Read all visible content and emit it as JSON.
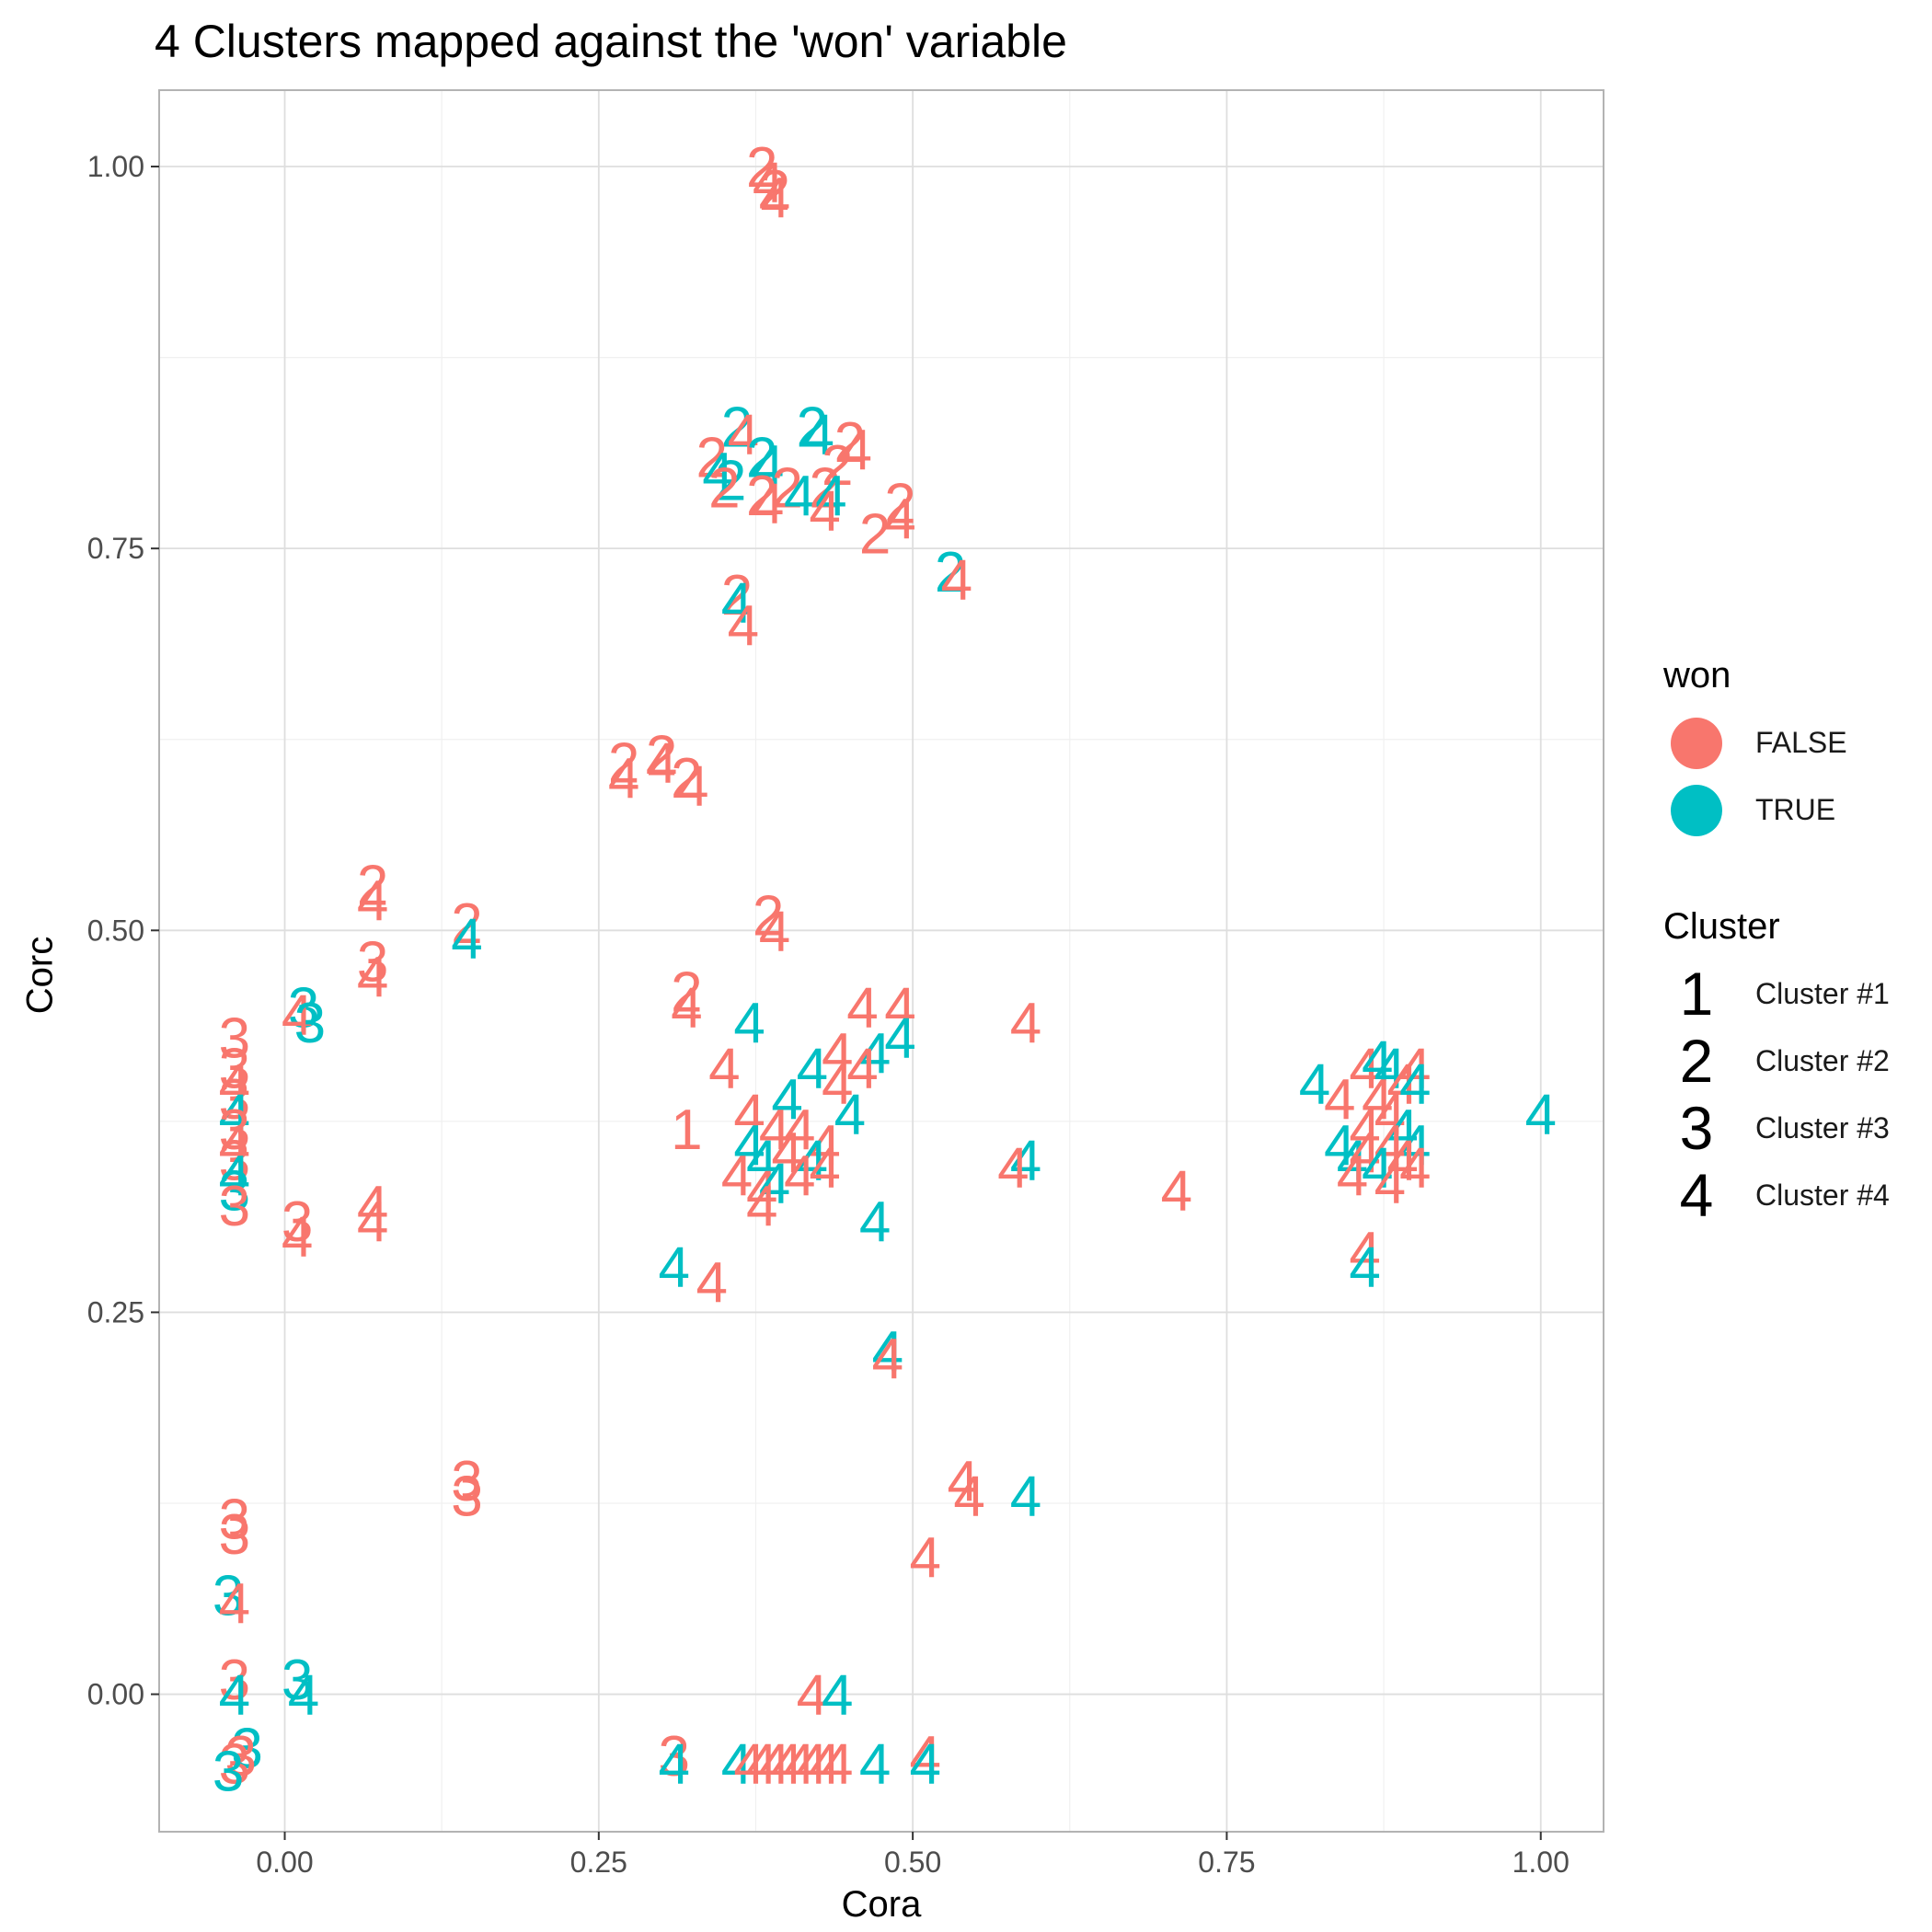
{
  "chart_data": {
    "type": "scatter",
    "title": "4 Clusters mapped against the 'won' variable",
    "xlabel": "Cora",
    "ylabel": "Corc",
    "xlim": [
      -0.1,
      1.05
    ],
    "ylim": [
      -0.09,
      1.05
    ],
    "x_ticks": [
      0.0,
      0.25,
      0.5,
      0.75,
      1.0
    ],
    "x_tick_labels": [
      "0.00",
      "0.25",
      "0.50",
      "0.75",
      "1.00"
    ],
    "y_ticks": [
      0.0,
      0.25,
      0.5,
      0.75,
      1.0
    ],
    "y_tick_labels": [
      "0.00",
      "0.25",
      "0.50",
      "0.75",
      "1.00"
    ],
    "grid": true,
    "legend_position": "right",
    "colors": {
      "FALSE": "#F8766D",
      "TRUE": "#00BFC4"
    },
    "legends": {
      "won": {
        "title": "won",
        "entries": [
          {
            "label": "FALSE",
            "key": "FALSE"
          },
          {
            "label": "TRUE",
            "key": "TRUE"
          }
        ]
      },
      "cluster": {
        "title": "Cluster",
        "entries": [
          {
            "glyph": "1",
            "label": "Cluster #1"
          },
          {
            "glyph": "2",
            "label": "Cluster #2"
          },
          {
            "glyph": "3",
            "label": "Cluster #3"
          },
          {
            "glyph": "4",
            "label": "Cluster #4"
          }
        ]
      }
    },
    "points": [
      {
        "x": 0.38,
        "y": 1.0,
        "label": "2",
        "won": "FALSE"
      },
      {
        "x": 0.385,
        "y": 0.99,
        "label": "4",
        "won": "FALSE"
      },
      {
        "x": 0.39,
        "y": 0.985,
        "label": "2",
        "won": "FALSE"
      },
      {
        "x": 0.39,
        "y": 0.98,
        "label": "4",
        "won": "FALSE"
      },
      {
        "x": 0.36,
        "y": 0.83,
        "label": "2",
        "won": "TRUE"
      },
      {
        "x": 0.365,
        "y": 0.825,
        "label": "4",
        "won": "FALSE"
      },
      {
        "x": 0.42,
        "y": 0.83,
        "label": "2",
        "won": "TRUE"
      },
      {
        "x": 0.425,
        "y": 0.825,
        "label": "4",
        "won": "TRUE"
      },
      {
        "x": 0.34,
        "y": 0.81,
        "label": "2",
        "won": "FALSE"
      },
      {
        "x": 0.345,
        "y": 0.8,
        "label": "4",
        "won": "TRUE"
      },
      {
        "x": 0.38,
        "y": 0.81,
        "label": "2",
        "won": "TRUE"
      },
      {
        "x": 0.385,
        "y": 0.805,
        "label": "4",
        "won": "TRUE"
      },
      {
        "x": 0.355,
        "y": 0.795,
        "label": "2",
        "won": "TRUE"
      },
      {
        "x": 0.35,
        "y": 0.79,
        "label": "2",
        "won": "FALSE"
      },
      {
        "x": 0.45,
        "y": 0.82,
        "label": "2",
        "won": "FALSE"
      },
      {
        "x": 0.455,
        "y": 0.815,
        "label": "4",
        "won": "FALSE"
      },
      {
        "x": 0.44,
        "y": 0.805,
        "label": "2",
        "won": "FALSE"
      },
      {
        "x": 0.38,
        "y": 0.785,
        "label": "2",
        "won": "FALSE"
      },
      {
        "x": 0.385,
        "y": 0.78,
        "label": "4",
        "won": "FALSE"
      },
      {
        "x": 0.4,
        "y": 0.79,
        "label": "2",
        "won": "FALSE"
      },
      {
        "x": 0.41,
        "y": 0.785,
        "label": "4",
        "won": "TRUE"
      },
      {
        "x": 0.43,
        "y": 0.79,
        "label": "2",
        "won": "FALSE"
      },
      {
        "x": 0.435,
        "y": 0.785,
        "label": "4",
        "won": "TRUE"
      },
      {
        "x": 0.43,
        "y": 0.775,
        "label": "4",
        "won": "FALSE"
      },
      {
        "x": 0.49,
        "y": 0.78,
        "label": "2",
        "won": "FALSE"
      },
      {
        "x": 0.49,
        "y": 0.77,
        "label": "4",
        "won": "FALSE"
      },
      {
        "x": 0.47,
        "y": 0.76,
        "label": "2",
        "won": "FALSE"
      },
      {
        "x": 0.53,
        "y": 0.735,
        "label": "2",
        "won": "TRUE"
      },
      {
        "x": 0.535,
        "y": 0.73,
        "label": "4",
        "won": "FALSE"
      },
      {
        "x": 0.36,
        "y": 0.72,
        "label": "2",
        "won": "FALSE"
      },
      {
        "x": 0.36,
        "y": 0.715,
        "label": "4",
        "won": "TRUE"
      },
      {
        "x": 0.365,
        "y": 0.7,
        "label": "4",
        "won": "FALSE"
      },
      {
        "x": 0.27,
        "y": 0.61,
        "label": "2",
        "won": "FALSE"
      },
      {
        "x": 0.27,
        "y": 0.6,
        "label": "4",
        "won": "FALSE"
      },
      {
        "x": 0.3,
        "y": 0.615,
        "label": "2",
        "won": "FALSE"
      },
      {
        "x": 0.3,
        "y": 0.61,
        "label": "4",
        "won": "FALSE"
      },
      {
        "x": 0.32,
        "y": 0.6,
        "label": "2",
        "won": "FALSE"
      },
      {
        "x": 0.325,
        "y": 0.595,
        "label": "4",
        "won": "FALSE"
      },
      {
        "x": 0.07,
        "y": 0.53,
        "label": "2",
        "won": "FALSE"
      },
      {
        "x": 0.07,
        "y": 0.52,
        "label": "4",
        "won": "FALSE"
      },
      {
        "x": 0.145,
        "y": 0.505,
        "label": "2",
        "won": "FALSE"
      },
      {
        "x": 0.145,
        "y": 0.495,
        "label": "4",
        "won": "TRUE"
      },
      {
        "x": 0.385,
        "y": 0.51,
        "label": "2",
        "won": "FALSE"
      },
      {
        "x": 0.39,
        "y": 0.5,
        "label": "4",
        "won": "FALSE"
      },
      {
        "x": 0.07,
        "y": 0.48,
        "label": "3",
        "won": "FALSE"
      },
      {
        "x": 0.07,
        "y": 0.47,
        "label": "4",
        "won": "FALSE"
      },
      {
        "x": 0.32,
        "y": 0.46,
        "label": "2",
        "won": "FALSE"
      },
      {
        "x": 0.32,
        "y": 0.45,
        "label": "4",
        "won": "FALSE"
      },
      {
        "x": 0.015,
        "y": 0.45,
        "label": "3",
        "won": "TRUE"
      },
      {
        "x": 0.01,
        "y": 0.445,
        "label": "4",
        "won": "FALSE"
      },
      {
        "x": 0.02,
        "y": 0.44,
        "label": "3",
        "won": "TRUE"
      },
      {
        "x": -0.04,
        "y": 0.43,
        "label": "3",
        "won": "FALSE"
      },
      {
        "x": -0.04,
        "y": 0.41,
        "label": "3",
        "won": "FALSE"
      },
      {
        "x": -0.04,
        "y": 0.4,
        "label": "4",
        "won": "FALSE"
      },
      {
        "x": -0.04,
        "y": 0.39,
        "label": "3",
        "won": "FALSE"
      },
      {
        "x": -0.04,
        "y": 0.38,
        "label": "4",
        "won": "TRUE"
      },
      {
        "x": -0.04,
        "y": 0.37,
        "label": "3",
        "won": "FALSE"
      },
      {
        "x": -0.04,
        "y": 0.36,
        "label": "4",
        "won": "FALSE"
      },
      {
        "x": -0.04,
        "y": 0.35,
        "label": "3",
        "won": "FALSE"
      },
      {
        "x": -0.04,
        "y": 0.34,
        "label": "4",
        "won": "TRUE"
      },
      {
        "x": -0.04,
        "y": 0.33,
        "label": "3",
        "won": "TRUE"
      },
      {
        "x": -0.04,
        "y": 0.32,
        "label": "3",
        "won": "FALSE"
      },
      {
        "x": 0.01,
        "y": 0.31,
        "label": "3",
        "won": "FALSE"
      },
      {
        "x": 0.01,
        "y": 0.3,
        "label": "4",
        "won": "FALSE"
      },
      {
        "x": 0.07,
        "y": 0.32,
        "label": "4",
        "won": "FALSE"
      },
      {
        "x": 0.07,
        "y": 0.31,
        "label": "4",
        "won": "FALSE"
      },
      {
        "x": 0.37,
        "y": 0.44,
        "label": "4",
        "won": "TRUE"
      },
      {
        "x": 0.35,
        "y": 0.41,
        "label": "4",
        "won": "FALSE"
      },
      {
        "x": 0.32,
        "y": 0.37,
        "label": "1",
        "won": "FALSE"
      },
      {
        "x": 0.46,
        "y": 0.45,
        "label": "4",
        "won": "FALSE"
      },
      {
        "x": 0.49,
        "y": 0.45,
        "label": "4",
        "won": "FALSE"
      },
      {
        "x": 0.49,
        "y": 0.43,
        "label": "4",
        "won": "TRUE"
      },
      {
        "x": 0.47,
        "y": 0.42,
        "label": "4",
        "won": "TRUE"
      },
      {
        "x": 0.44,
        "y": 0.42,
        "label": "4",
        "won": "FALSE"
      },
      {
        "x": 0.42,
        "y": 0.41,
        "label": "4",
        "won": "TRUE"
      },
      {
        "x": 0.44,
        "y": 0.4,
        "label": "4",
        "won": "FALSE"
      },
      {
        "x": 0.46,
        "y": 0.41,
        "label": "4",
        "won": "FALSE"
      },
      {
        "x": 0.4,
        "y": 0.39,
        "label": "4",
        "won": "TRUE"
      },
      {
        "x": 0.45,
        "y": 0.38,
        "label": "4",
        "won": "TRUE"
      },
      {
        "x": 0.37,
        "y": 0.38,
        "label": "4",
        "won": "FALSE"
      },
      {
        "x": 0.39,
        "y": 0.37,
        "label": "4",
        "won": "FALSE"
      },
      {
        "x": 0.41,
        "y": 0.37,
        "label": "4",
        "won": "FALSE"
      },
      {
        "x": 0.43,
        "y": 0.36,
        "label": "4",
        "won": "FALSE"
      },
      {
        "x": 0.37,
        "y": 0.36,
        "label": "4",
        "won": "TRUE"
      },
      {
        "x": 0.38,
        "y": 0.35,
        "label": "4",
        "won": "TRUE"
      },
      {
        "x": 0.4,
        "y": 0.355,
        "label": "4",
        "won": "FALSE"
      },
      {
        "x": 0.42,
        "y": 0.35,
        "label": "4",
        "won": "TRUE"
      },
      {
        "x": 0.43,
        "y": 0.345,
        "label": "4",
        "won": "FALSE"
      },
      {
        "x": 0.36,
        "y": 0.34,
        "label": "4",
        "won": "FALSE"
      },
      {
        "x": 0.38,
        "y": 0.33,
        "label": "4",
        "won": "FALSE"
      },
      {
        "x": 0.39,
        "y": 0.335,
        "label": "4",
        "won": "TRUE"
      },
      {
        "x": 0.41,
        "y": 0.34,
        "label": "4",
        "won": "FALSE"
      },
      {
        "x": 0.38,
        "y": 0.32,
        "label": "4",
        "won": "FALSE"
      },
      {
        "x": 0.59,
        "y": 0.44,
        "label": "4",
        "won": "FALSE"
      },
      {
        "x": 0.59,
        "y": 0.35,
        "label": "4",
        "won": "TRUE"
      },
      {
        "x": 0.58,
        "y": 0.345,
        "label": "4",
        "won": "FALSE"
      },
      {
        "x": 0.71,
        "y": 0.33,
        "label": "4",
        "won": "FALSE"
      },
      {
        "x": 0.47,
        "y": 0.31,
        "label": "4",
        "won": "TRUE"
      },
      {
        "x": 0.31,
        "y": 0.28,
        "label": "4",
        "won": "TRUE"
      },
      {
        "x": 0.34,
        "y": 0.27,
        "label": "4",
        "won": "FALSE"
      },
      {
        "x": 0.48,
        "y": 0.225,
        "label": "4",
        "won": "TRUE"
      },
      {
        "x": 0.48,
        "y": 0.22,
        "label": "4",
        "won": "FALSE"
      },
      {
        "x": 0.82,
        "y": 0.4,
        "label": "4",
        "won": "TRUE"
      },
      {
        "x": 0.84,
        "y": 0.39,
        "label": "4",
        "won": "FALSE"
      },
      {
        "x": 0.86,
        "y": 0.41,
        "label": "4",
        "won": "FALSE"
      },
      {
        "x": 0.87,
        "y": 0.415,
        "label": "4",
        "won": "TRUE"
      },
      {
        "x": 0.88,
        "y": 0.41,
        "label": "4",
        "won": "TRUE"
      },
      {
        "x": 0.89,
        "y": 0.4,
        "label": "4",
        "won": "FALSE"
      },
      {
        "x": 0.9,
        "y": 0.41,
        "label": "4",
        "won": "FALSE"
      },
      {
        "x": 0.9,
        "y": 0.4,
        "label": "4",
        "won": "TRUE"
      },
      {
        "x": 0.87,
        "y": 0.39,
        "label": "4",
        "won": "FALSE"
      },
      {
        "x": 0.88,
        "y": 0.38,
        "label": "4",
        "won": "FALSE"
      },
      {
        "x": 0.86,
        "y": 0.37,
        "label": "4",
        "won": "FALSE"
      },
      {
        "x": 0.89,
        "y": 0.37,
        "label": "4",
        "won": "TRUE"
      },
      {
        "x": 0.9,
        "y": 0.36,
        "label": "4",
        "won": "TRUE"
      },
      {
        "x": 0.88,
        "y": 0.36,
        "label": "4",
        "won": "FALSE"
      },
      {
        "x": 0.84,
        "y": 0.36,
        "label": "4",
        "won": "TRUE"
      },
      {
        "x": 0.85,
        "y": 0.35,
        "label": "4",
        "won": "TRUE"
      },
      {
        "x": 0.86,
        "y": 0.355,
        "label": "4",
        "won": "FALSE"
      },
      {
        "x": 0.87,
        "y": 0.345,
        "label": "4",
        "won": "TRUE"
      },
      {
        "x": 0.89,
        "y": 0.35,
        "label": "4",
        "won": "FALSE"
      },
      {
        "x": 0.9,
        "y": 0.345,
        "label": "4",
        "won": "FALSE"
      },
      {
        "x": 0.85,
        "y": 0.34,
        "label": "4",
        "won": "FALSE"
      },
      {
        "x": 0.88,
        "y": 0.335,
        "label": "4",
        "won": "FALSE"
      },
      {
        "x": 1.0,
        "y": 0.38,
        "label": "4",
        "won": "TRUE"
      },
      {
        "x": 0.86,
        "y": 0.29,
        "label": "4",
        "won": "FALSE"
      },
      {
        "x": 0.86,
        "y": 0.28,
        "label": "4",
        "won": "TRUE"
      },
      {
        "x": 0.54,
        "y": 0.14,
        "label": "4",
        "won": "FALSE"
      },
      {
        "x": 0.545,
        "y": 0.13,
        "label": "4",
        "won": "FALSE"
      },
      {
        "x": 0.59,
        "y": 0.13,
        "label": "4",
        "won": "TRUE"
      },
      {
        "x": 0.51,
        "y": 0.09,
        "label": "4",
        "won": "FALSE"
      },
      {
        "x": 0.145,
        "y": 0.14,
        "label": "3",
        "won": "FALSE"
      },
      {
        "x": 0.145,
        "y": 0.13,
        "label": "3",
        "won": "FALSE"
      },
      {
        "x": -0.04,
        "y": 0.115,
        "label": "3",
        "won": "FALSE"
      },
      {
        "x": -0.04,
        "y": 0.105,
        "label": "3",
        "won": "FALSE"
      },
      {
        "x": -0.045,
        "y": 0.065,
        "label": "3",
        "won": "TRUE"
      },
      {
        "x": -0.04,
        "y": 0.06,
        "label": "4",
        "won": "FALSE"
      },
      {
        "x": -0.04,
        "y": 0.01,
        "label": "3",
        "won": "FALSE"
      },
      {
        "x": -0.04,
        "y": 0.0,
        "label": "4",
        "won": "TRUE"
      },
      {
        "x": 0.01,
        "y": 0.01,
        "label": "3",
        "won": "TRUE"
      },
      {
        "x": 0.015,
        "y": 0.0,
        "label": "4",
        "won": "TRUE"
      },
      {
        "x": -0.03,
        "y": -0.035,
        "label": "3",
        "won": "TRUE"
      },
      {
        "x": -0.035,
        "y": -0.04,
        "label": "3",
        "won": "FALSE"
      },
      {
        "x": -0.04,
        "y": -0.045,
        "label": "3",
        "won": "FALSE"
      },
      {
        "x": -0.045,
        "y": -0.05,
        "label": "3",
        "won": "TRUE"
      },
      {
        "x": 0.42,
        "y": 0.0,
        "label": "4",
        "won": "FALSE"
      },
      {
        "x": 0.44,
        "y": 0.0,
        "label": "4",
        "won": "TRUE"
      },
      {
        "x": 0.31,
        "y": -0.04,
        "label": "3",
        "won": "FALSE"
      },
      {
        "x": 0.31,
        "y": -0.045,
        "label": "4",
        "won": "TRUE"
      },
      {
        "x": 0.36,
        "y": -0.045,
        "label": "4",
        "won": "TRUE"
      },
      {
        "x": 0.37,
        "y": -0.045,
        "label": "4",
        "won": "FALSE"
      },
      {
        "x": 0.38,
        "y": -0.045,
        "label": "4",
        "won": "FALSE"
      },
      {
        "x": 0.39,
        "y": -0.045,
        "label": "4",
        "won": "FALSE"
      },
      {
        "x": 0.4,
        "y": -0.045,
        "label": "4",
        "won": "FALSE"
      },
      {
        "x": 0.41,
        "y": -0.045,
        "label": "4",
        "won": "FALSE"
      },
      {
        "x": 0.42,
        "y": -0.045,
        "label": "4",
        "won": "FALSE"
      },
      {
        "x": 0.43,
        "y": -0.045,
        "label": "4",
        "won": "FALSE"
      },
      {
        "x": 0.44,
        "y": -0.045,
        "label": "4",
        "won": "FALSE"
      },
      {
        "x": 0.47,
        "y": -0.045,
        "label": "4",
        "won": "TRUE"
      },
      {
        "x": 0.51,
        "y": -0.04,
        "label": "4",
        "won": "FALSE"
      },
      {
        "x": 0.51,
        "y": -0.045,
        "label": "4",
        "won": "TRUE"
      }
    ]
  }
}
